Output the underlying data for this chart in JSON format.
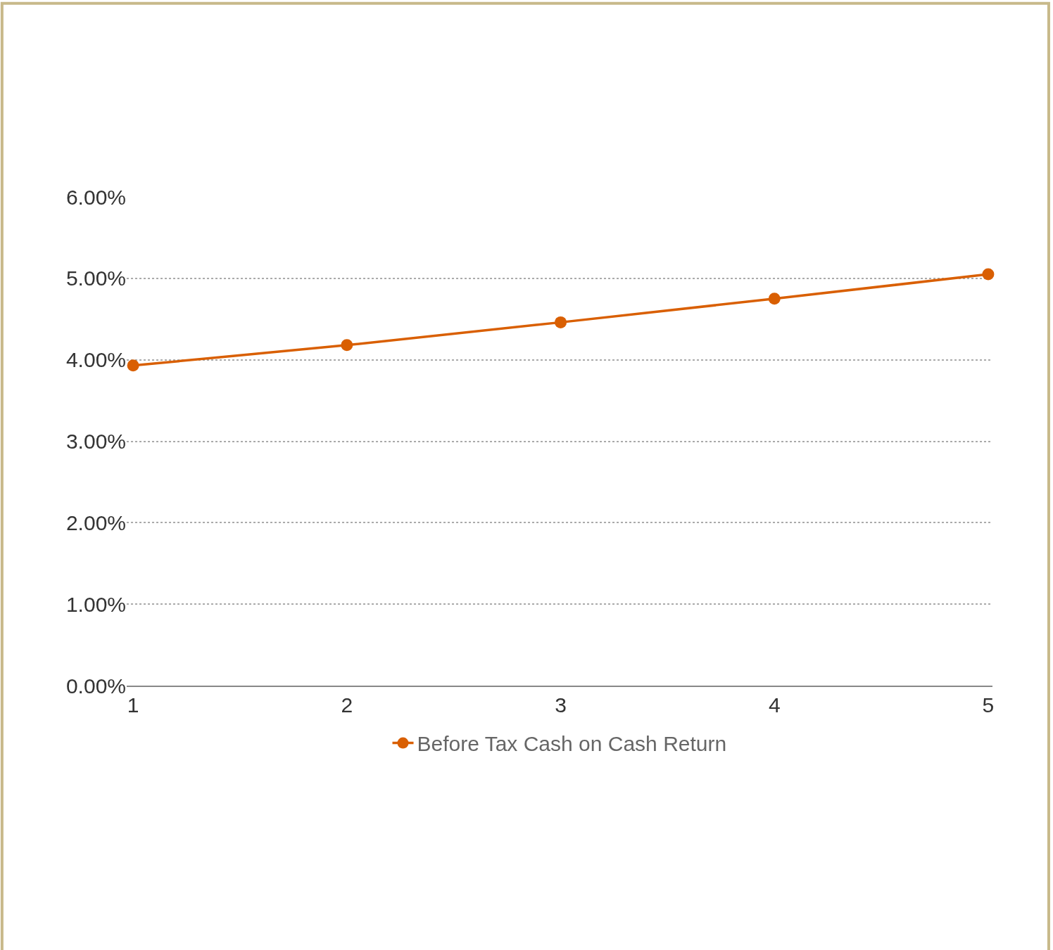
{
  "chart_data": {
    "type": "line",
    "x": [
      1,
      2,
      3,
      4,
      5
    ],
    "series": [
      {
        "name": "Before Tax Cash on Cash Return",
        "color": "#d95f02",
        "values": [
          3.93,
          4.18,
          4.46,
          4.75,
          5.05
        ]
      }
    ],
    "xlim": [
      0.97,
      5.02
    ],
    "xticks": [
      1,
      2,
      3,
      4,
      5
    ],
    "ylim": [
      0,
      6
    ],
    "yticks": [
      {
        "value": 0,
        "label": "0.00%"
      },
      {
        "value": 1,
        "label": "1.00%"
      },
      {
        "value": 2,
        "label": "2.00%"
      },
      {
        "value": 3,
        "label": "3.00%"
      },
      {
        "value": 4,
        "label": "4.00%"
      },
      {
        "value": 5,
        "label": "5.00%"
      },
      {
        "value": 6,
        "label": "6.00%"
      }
    ],
    "grid": "y",
    "legend": "bottom",
    "marker": "circle",
    "line_style": "solid"
  }
}
